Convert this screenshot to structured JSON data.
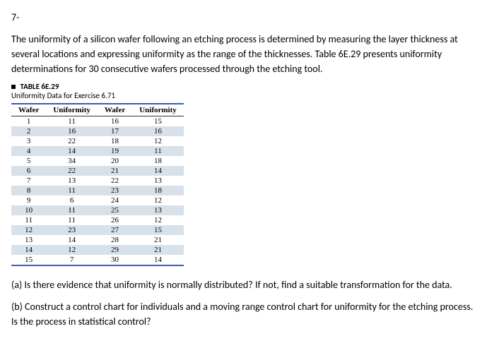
{
  "question_number": "7-",
  "intro_paragraph": "The uniformity of a silicon wafer following an etching process is determined by measuring the layer thickness at several locations and expressing uniformity as the range of the thicknesses.  Table 6E.29 presents uniformity determinations for 30 consecutive wafers processed through the etching tool.",
  "table_label": "TABLE 6E.29",
  "table_subtitle": "Uniformity Data for Exercise 6.71",
  "columns": [
    "Wafer",
    "Uniformity",
    "Wafer",
    "Uniformity"
  ],
  "rows": [
    [
      "1",
      "11",
      "16",
      "15"
    ],
    [
      "2",
      "16",
      "17",
      "16"
    ],
    [
      "3",
      "22",
      "18",
      "12"
    ],
    [
      "4",
      "14",
      "19",
      "11"
    ],
    [
      "5",
      "34",
      "20",
      "18"
    ],
    [
      "6",
      "22",
      "21",
      "14"
    ],
    [
      "7",
      "13",
      "22",
      "13"
    ],
    [
      "8",
      "11",
      "23",
      "18"
    ],
    [
      "9",
      "6",
      "24",
      "12"
    ],
    [
      "10",
      "11",
      "25",
      "13"
    ],
    [
      "11",
      "11",
      "26",
      "12"
    ],
    [
      "12",
      "23",
      "27",
      "15"
    ],
    [
      "13",
      "14",
      "28",
      "21"
    ],
    [
      "14",
      "12",
      "29",
      "21"
    ],
    [
      "15",
      "7",
      "30",
      "14"
    ]
  ],
  "part_a": "(a)  Is there evidence that uniformity is normally distributed?  If not, find a suitable transformation for the data.",
  "part_b": "(b)  Construct a control chart for individuals and a moving range control chart for uniformity for the etching process.  Is the process in statistical control?",
  "colors": {
    "shade": "#d8e0ea",
    "rule": "#3a5fa0"
  }
}
